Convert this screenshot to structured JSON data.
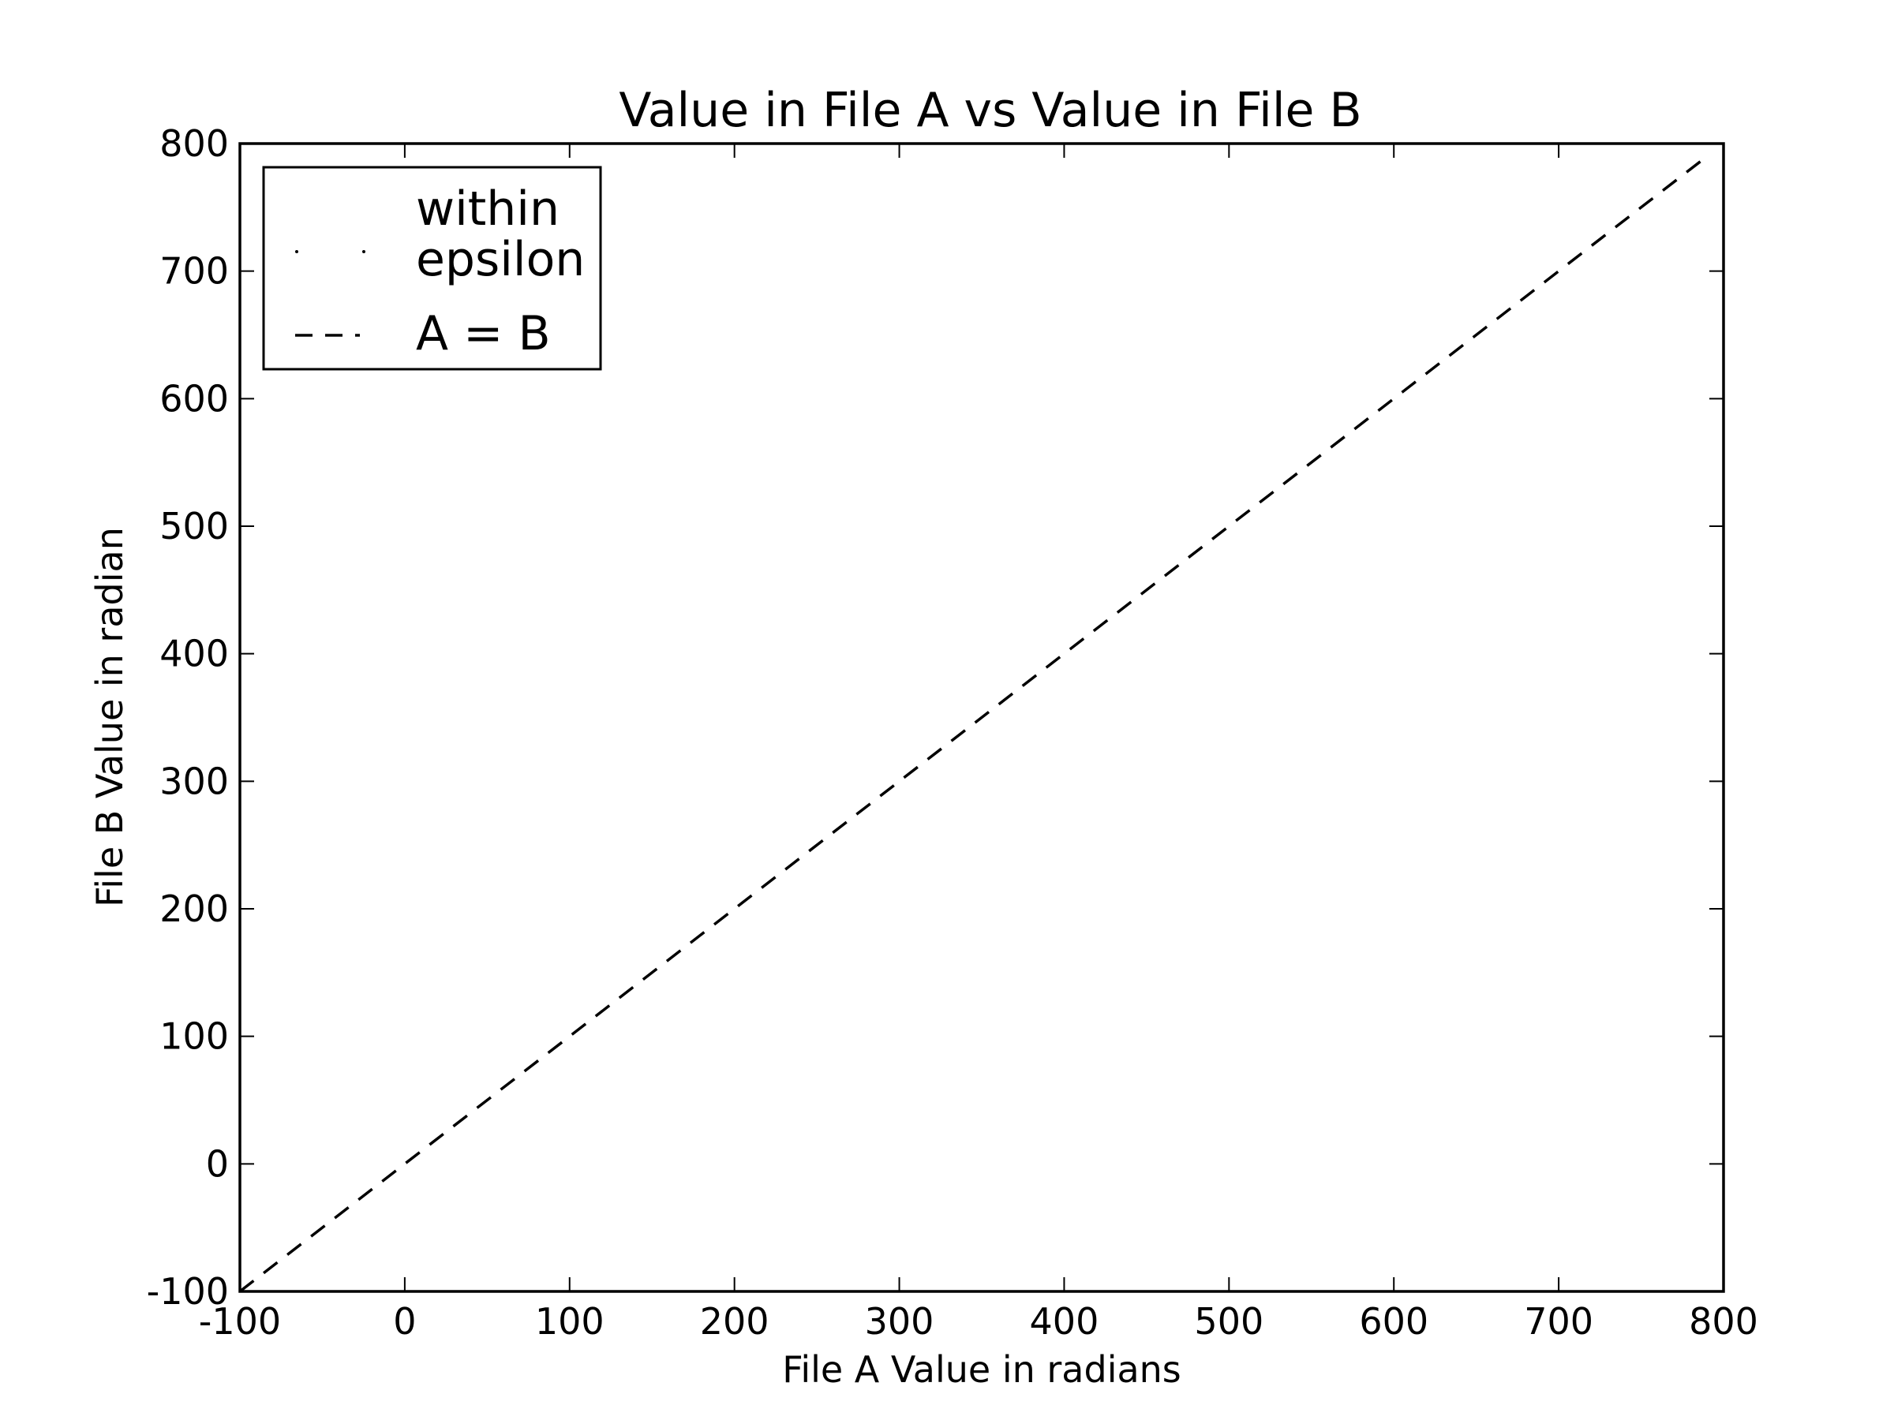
{
  "chart_data": {
    "type": "line",
    "title": "Value in File A vs Value in File B",
    "xlabel": "File A Value in radians",
    "ylabel": "File B Value in radian",
    "xlim": [
      -100,
      800
    ],
    "ylim": [
      -100,
      800
    ],
    "xticks": [
      "-100",
      "0",
      "100",
      "200",
      "300",
      "400",
      "500",
      "600",
      "700",
      "800"
    ],
    "yticks": [
      "-100",
      "0",
      "100",
      "200",
      "300",
      "400",
      "500",
      "600",
      "700",
      "800"
    ],
    "grid": false,
    "legend_position": "top-left",
    "series": [
      {
        "name": "within epsilon",
        "style": "points",
        "color": "#000000",
        "x": [],
        "y": []
      },
      {
        "name": "A = B",
        "style": "dashed",
        "color": "#000000",
        "x": [
          -100,
          790
        ],
        "y": [
          -100,
          790
        ]
      }
    ],
    "legend": {
      "entries": [
        {
          "lines": [
            "within",
            "epsilon"
          ],
          "marker": "points"
        },
        {
          "lines": [
            "A = B"
          ],
          "marker": "dashed"
        }
      ]
    }
  }
}
